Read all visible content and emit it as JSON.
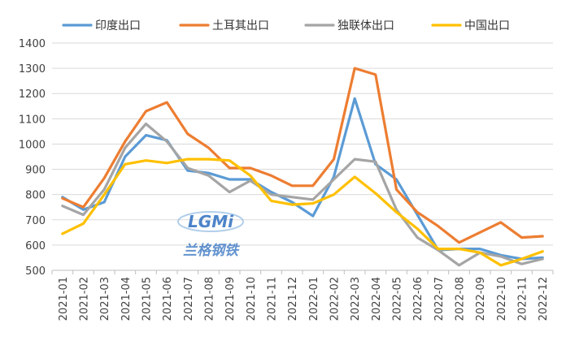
{
  "chart_data": {
    "type": "line",
    "categories": [
      "2021-01",
      "2021-02",
      "2021-03",
      "2021-04",
      "2021-05",
      "2021-06",
      "2021-07",
      "2021-08",
      "2021-09",
      "2021-10",
      "2021-11",
      "2021-12",
      "2022-01",
      "2022-02",
      "2022-03",
      "2022-04",
      "2022-05",
      "2022-06",
      "2022-07",
      "2022-08",
      "2022-09",
      "2022-10",
      "2022-11",
      "2022-12"
    ],
    "ylim": [
      500,
      1400
    ],
    "yticks": [
      500,
      600,
      700,
      800,
      900,
      1000,
      1100,
      1200,
      1300,
      1400
    ],
    "grid": true,
    "legend_position": "top",
    "series": [
      {
        "name": "印度出口",
        "color": "#5b9bd5",
        "values": [
          790,
          740,
          770,
          950,
          1035,
          1015,
          895,
          885,
          860,
          860,
          810,
          770,
          715,
          870,
          1180,
          920,
          860,
          720,
          580,
          585,
          585,
          560,
          545,
          550
        ]
      },
      {
        "name": "土耳其出口",
        "color": "#ed7d31",
        "values": [
          785,
          750,
          865,
          1010,
          1130,
          1165,
          1040,
          985,
          905,
          905,
          875,
          835,
          835,
          940,
          1300,
          1275,
          820,
          730,
          675,
          610,
          650,
          690,
          630,
          635
        ]
      },
      {
        "name": "独联体出口",
        "color": "#a5a5a5",
        "values": [
          755,
          720,
          820,
          985,
          1080,
          1010,
          905,
          875,
          810,
          855,
          800,
          790,
          780,
          860,
          940,
          930,
          740,
          630,
          580,
          520,
          570,
          555,
          525,
          545
        ]
      },
      {
        "name": "中国出口",
        "color": "#ffc000",
        "values": [
          645,
          685,
          800,
          920,
          935,
          925,
          940,
          940,
          935,
          875,
          775,
          760,
          765,
          800,
          870,
          805,
          730,
          665,
          585,
          585,
          570,
          520,
          545,
          575
        ]
      }
    ]
  },
  "watermark": {
    "logo_text": "LGMi",
    "caption": "兰格钢铁"
  }
}
